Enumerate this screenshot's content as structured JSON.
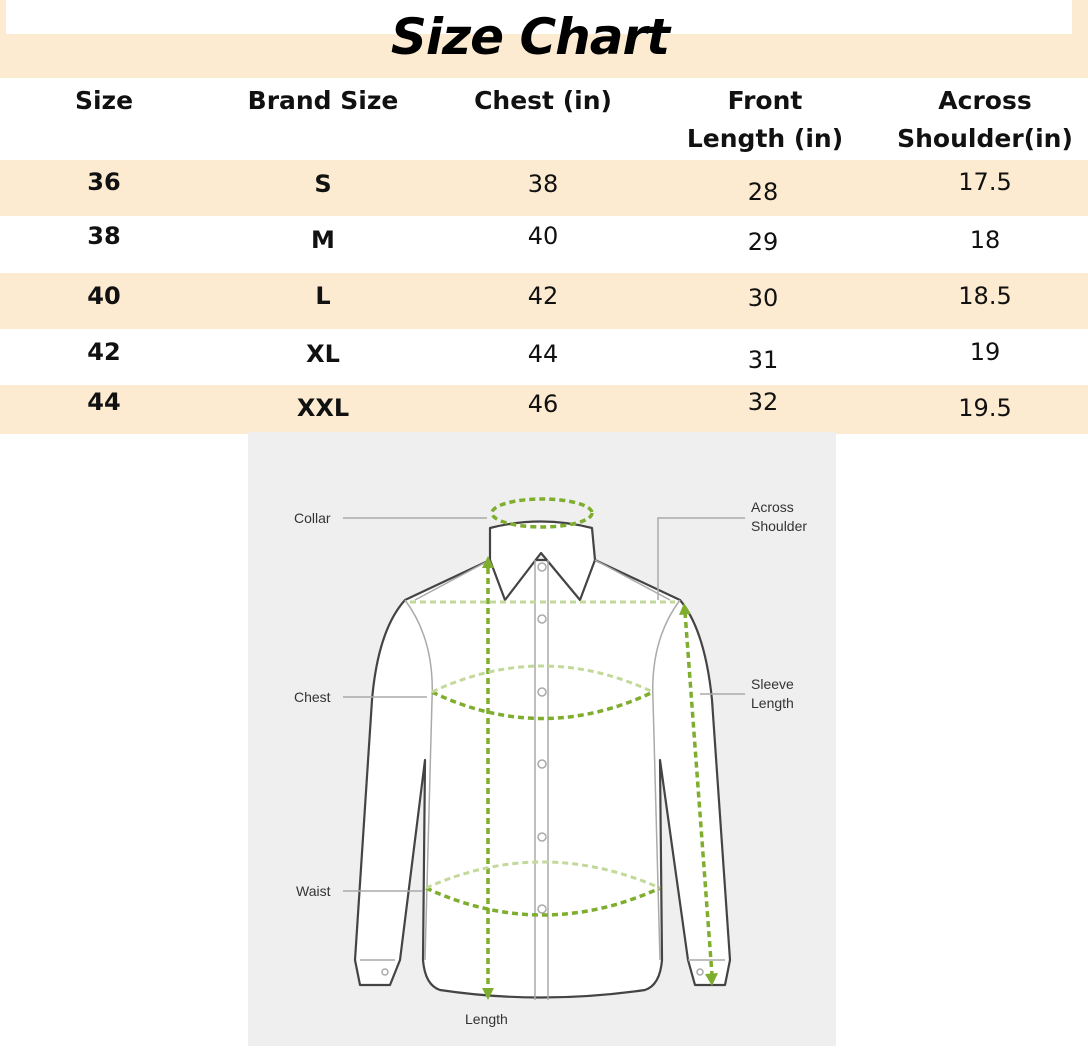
{
  "title": "Size Chart",
  "table": {
    "headers": [
      "Size",
      "Brand Size",
      "Chest (in)",
      "Front Length (in)",
      "Across Shoulder(in)"
    ],
    "rows": [
      [
        "36",
        "S",
        "38",
        "28",
        "17.5"
      ],
      [
        "38",
        "M",
        "40",
        "29",
        "18"
      ],
      [
        "40",
        "L",
        "42",
        "30",
        "18.5"
      ],
      [
        "42",
        "XL",
        "44",
        "31",
        "19"
      ],
      [
        "44",
        "XXL",
        "46",
        "32",
        "19.5"
      ]
    ]
  },
  "diagram": {
    "labels": {
      "collar": "Collar",
      "across_shoulder": "Across Shoulder",
      "chest": "Chest",
      "sleeve_length": "Sleeve Length",
      "waist": "Waist",
      "length": "Length"
    }
  },
  "colors": {
    "band": "#fcebd0",
    "measure_green": "#7fae2e"
  }
}
